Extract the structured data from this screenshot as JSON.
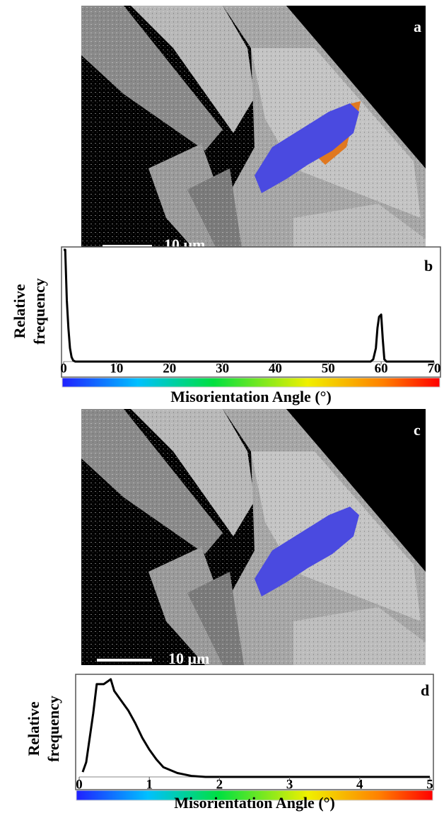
{
  "panels": [
    {
      "label": "a",
      "scale_bar": "10 μm"
    },
    {
      "label": "c",
      "scale_bar": "10 μm"
    }
  ],
  "chart_data": [
    {
      "type": "line",
      "label": "b",
      "y_label": [
        "Relative",
        "frequency"
      ],
      "x_label": "Misorientation Angle (°)",
      "x": [
        0,
        0.3,
        0.6,
        0.9,
        1.2,
        1.5,
        1.8,
        2.2,
        3,
        57,
        58,
        58.5,
        59,
        59.3,
        59.6,
        60,
        60.3,
        60.6,
        61,
        70
      ],
      "values": [
        1,
        1,
        0.55,
        0.3,
        0.12,
        0.04,
        0.01,
        0,
        0,
        0,
        0,
        0.02,
        0.12,
        0.3,
        0.4,
        0.42,
        0.2,
        0.02,
        0,
        0
      ],
      "color": "#000000",
      "xlim": [
        0,
        70
      ],
      "xticks": [
        0,
        10,
        20,
        30,
        40,
        50,
        60,
        70
      ],
      "ylim": [
        0,
        1
      ]
    },
    {
      "type": "line",
      "label": "d",
      "y_label": [
        "Relative",
        "frequency"
      ],
      "x_label": "Misorientation Angle (°)",
      "x": [
        0.05,
        0.1,
        0.2,
        0.25,
        0.35,
        0.45,
        0.5,
        0.6,
        0.7,
        0.8,
        0.9,
        1.0,
        1.1,
        1.2,
        1.4,
        1.6,
        1.8,
        5
      ],
      "values": [
        0.05,
        0.15,
        0.65,
        0.95,
        0.95,
        1.0,
        0.88,
        0.78,
        0.68,
        0.55,
        0.4,
        0.28,
        0.18,
        0.1,
        0.04,
        0.01,
        0,
        0
      ],
      "color": "#000000",
      "xlim": [
        0,
        5
      ],
      "xticks": [
        0,
        1,
        2,
        3,
        4,
        5
      ],
      "ylim": [
        0,
        1
      ]
    }
  ]
}
